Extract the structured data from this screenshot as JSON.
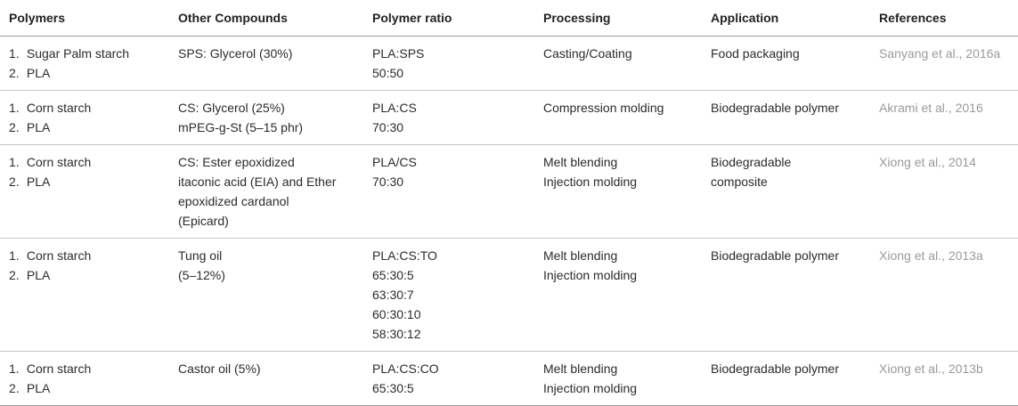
{
  "headers": [
    "Polymers",
    "Other Compounds",
    "Polymer ratio",
    "Processing",
    "Application",
    "References"
  ],
  "rows": [
    {
      "polymers": [
        "Sugar Palm starch",
        "PLA"
      ],
      "compounds": [
        "SPS: Glycerol (30%)"
      ],
      "ratio": [
        "PLA:SPS",
        "50:50"
      ],
      "processing": [
        "Casting/Coating"
      ],
      "application": [
        "Food packaging"
      ],
      "reference": "Sanyang et al., 2016a"
    },
    {
      "polymers": [
        "Corn starch",
        "PLA"
      ],
      "compounds": [
        "CS: Glycerol (25%)",
        "mPEG-g-St (5–15 phr)"
      ],
      "ratio": [
        "PLA:CS",
        "70:30"
      ],
      "processing": [
        "Compression molding"
      ],
      "application": [
        "Biodegradable polymer"
      ],
      "reference": "Akrami et al., 2016"
    },
    {
      "polymers": [
        "Corn starch",
        "PLA"
      ],
      "compounds": [
        "CS: Ester epoxidized",
        "itaconic acid (EIA) and Ether",
        "epoxidized cardanol",
        "(Epicard)"
      ],
      "ratio": [
        "PLA/CS",
        "70:30"
      ],
      "processing": [
        "Melt blending",
        "Injection molding"
      ],
      "application": [
        "Biodegradable",
        "composite"
      ],
      "reference": "Xiong et al., 2014"
    },
    {
      "polymers": [
        "Corn starch",
        "PLA"
      ],
      "compounds": [
        "Tung oil",
        "(5–12%)"
      ],
      "ratio": [
        "PLA:CS:TO",
        "65:30:5",
        "63:30:7",
        "60:30:10",
        "58:30:12"
      ],
      "processing": [
        "Melt blending",
        "Injection molding"
      ],
      "application": [
        "Biodegradable polymer"
      ],
      "reference": "Xiong et al., 2013a"
    },
    {
      "polymers": [
        "Corn starch",
        "PLA"
      ],
      "compounds": [
        "Castor oil (5%)"
      ],
      "ratio": [
        "PLA:CS:CO",
        "65:30:5"
      ],
      "processing": [
        "Melt blending",
        "Injection molding"
      ],
      "application": [
        "Biodegradable polymer"
      ],
      "reference": "Xiong et al., 2013b"
    }
  ]
}
